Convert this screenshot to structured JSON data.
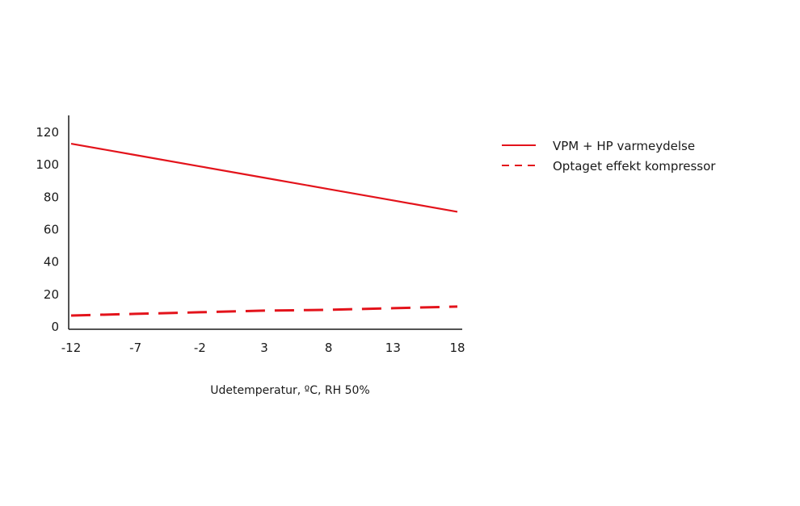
{
  "chart_data": {
    "type": "line",
    "title": "",
    "xlabel": "Udetemperatur, ºC, RH 50%",
    "ylabel": "",
    "x": [
      -12,
      -7,
      -2,
      3,
      8,
      13,
      18
    ],
    "x_tick_labels": [
      "-12",
      "-7",
      "-2",
      "3",
      "8",
      "13",
      "18"
    ],
    "y_ticks": [
      0,
      20,
      40,
      60,
      80,
      100,
      120
    ],
    "y_tick_labels": [
      "0",
      "20",
      "40",
      "60",
      "80",
      "100",
      "120"
    ],
    "xlim": [
      -12,
      18
    ],
    "ylim": [
      0,
      130
    ],
    "grid": false,
    "legend_position": "right",
    "series": [
      {
        "name": "VPM + HP varmeydelse",
        "style": "solid",
        "color": "#e3131b",
        "values": [
          113,
          106,
          99,
          92,
          85,
          78,
          71
        ]
      },
      {
        "name": "Optaget effekt kompressor",
        "style": "dashed",
        "color": "#e3131b",
        "values": [
          7,
          8,
          9,
          10,
          10.5,
          11.5,
          12.5
        ]
      }
    ]
  }
}
